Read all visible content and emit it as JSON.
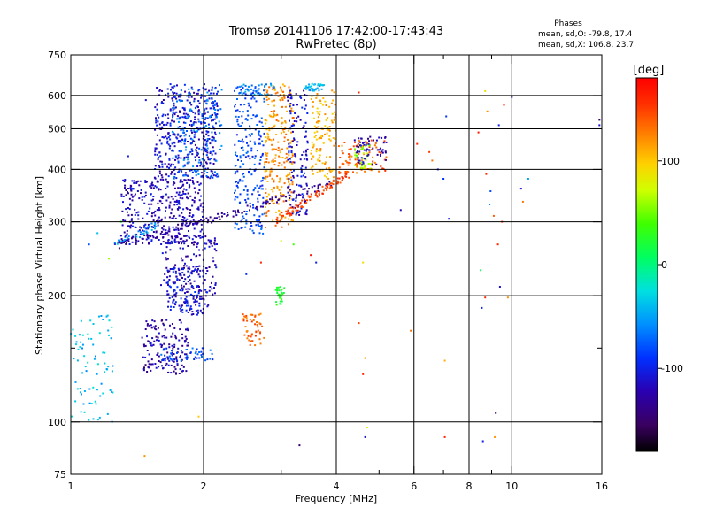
{
  "chart_data": {
    "type": "scatter",
    "title": "Tromsø 20141106 17:42:00-17:43:43",
    "subtitle": "RwPretec (8p)",
    "stats_header": "Phases",
    "stats_o": "mean, sd,O: -79.8, 17.4",
    "stats_x": "mean, sd,X: 106.8, 23.7",
    "xlabel": "Frequency [MHz]",
    "ylabel": "Stationary phase Virtual Height [km]",
    "x_scale": "log",
    "y_scale": "log",
    "xlim": [
      1,
      16
    ],
    "ylim": [
      75,
      750
    ],
    "x_ticks": [
      1,
      2,
      4,
      6,
      8,
      10,
      16
    ],
    "x_tick_labels": [
      "1",
      "2",
      "4",
      "6",
      "8",
      "10",
      "16"
    ],
    "x_minor_ticks": [
      3,
      5,
      7,
      9
    ],
    "y_ticks": [
      75,
      100,
      200,
      300,
      400,
      500,
      600,
      750
    ],
    "y_tick_labels": [
      "75",
      "100",
      "200",
      "300",
      "400",
      "500",
      "600",
      "750"
    ],
    "y_minor_ticks": [
      150
    ],
    "x_grid": [
      2,
      4,
      6,
      8,
      10
    ],
    "y_grid": [
      100,
      200,
      300,
      400,
      500,
      600
    ],
    "colorbar": {
      "label": "[deg]",
      "range": [
        -180,
        180
      ],
      "ticks": [
        -100,
        0,
        100
      ],
      "tick_labels": [
        "-100",
        "0",
        "100"
      ]
    },
    "clusters": [
      {
        "x": [
          1.55,
          2.15
        ],
        "y": [
          380,
          640
        ],
        "phase": -110,
        "n": 420
      },
      {
        "x": [
          1.3,
          2.0
        ],
        "y": [
          265,
          380
        ],
        "phase": -118,
        "n": 380
      },
      {
        "x": [
          1.6,
          2.15
        ],
        "y": [
          195,
          280
        ],
        "phase": -120,
        "n": 140
      },
      {
        "x": [
          1.65,
          2.05
        ],
        "y": [
          180,
          235
        ],
        "phase": -108,
        "n": 160
      },
      {
        "x": [
          1.45,
          1.85
        ],
        "y": [
          130,
          175
        ],
        "phase": -125,
        "n": 160
      },
      {
        "x": [
          1.6,
          2.1
        ],
        "y": [
          140,
          150
        ],
        "phase": -80,
        "n": 50
      },
      {
        "x": [
          1.7,
          2.2
        ],
        "y": [
          380,
          640
        ],
        "phase": -70,
        "n": 160
      },
      {
        "x": [
          2.35,
          2.75
        ],
        "y": [
          280,
          640
        ],
        "phase": -85,
        "n": 230
      },
      {
        "x": [
          2.75,
          3.2
        ],
        "y": [
          290,
          640
        ],
        "phase": 120,
        "n": 260
      },
      {
        "x": [
          3.1,
          3.45
        ],
        "y": [
          310,
          620
        ],
        "phase": -110,
        "n": 140
      },
      {
        "x": [
          3.5,
          4.0
        ],
        "y": [
          380,
          620
        ],
        "phase": 110,
        "n": 120
      },
      {
        "x": [
          4.05,
          5.2
        ],
        "y": [
          390,
          470
        ],
        "phase": 140,
        "n": 90
      },
      {
        "x": [
          4.4,
          4.8
        ],
        "y": [
          400,
          460
        ],
        "phase": 60,
        "n": 40
      },
      {
        "x": [
          4.4,
          5.2
        ],
        "y": [
          410,
          480
        ],
        "phase": -120,
        "n": 60
      },
      {
        "x": [
          2.45,
          2.75
        ],
        "y": [
          152,
          182
        ],
        "phase": 135,
        "n": 50
      },
      {
        "x": [
          2.9,
          3.05
        ],
        "y": [
          190,
          210
        ],
        "phase": 20,
        "n": 30
      },
      {
        "x": [
          1.0,
          1.25
        ],
        "y": [
          100,
          180
        ],
        "phase": -40,
        "n": 80
      },
      {
        "x": [
          3.4,
          3.75
        ],
        "y": [
          615,
          640
        ],
        "phase": -45,
        "n": 35
      },
      {
        "x": [
          2.4,
          2.9
        ],
        "y": [
          600,
          640
        ],
        "phase": -60,
        "n": 40
      }
    ],
    "traces": [
      {
        "x": [
          1.27,
          3.9
        ],
        "y": [
          263,
          368
        ],
        "phase": -130,
        "n": 150
      },
      {
        "x": [
          2.9,
          4.25
        ],
        "y": [
          300,
          390
        ],
        "phase": 150,
        "n": 90
      },
      {
        "x": [
          1.25,
          1.6
        ],
        "y": [
          262,
          300
        ],
        "phase": -50,
        "n": 30
      }
    ],
    "points": [
      {
        "x": 1.47,
        "y": 83,
        "phase": 120
      },
      {
        "x": 1.48,
        "y": 585,
        "phase": -110
      },
      {
        "x": 1.95,
        "y": 103,
        "phase": 100
      },
      {
        "x": 3.3,
        "y": 88,
        "phase": -150
      },
      {
        "x": 4.65,
        "y": 92,
        "phase": -110
      },
      {
        "x": 4.7,
        "y": 97,
        "phase": 80
      },
      {
        "x": 4.6,
        "y": 130,
        "phase": 160
      },
      {
        "x": 4.65,
        "y": 142,
        "phase": 120
      },
      {
        "x": 4.6,
        "y": 240,
        "phase": 90
      },
      {
        "x": 4.5,
        "y": 172,
        "phase": 150
      },
      {
        "x": 4.5,
        "y": 610,
        "phase": 160
      },
      {
        "x": 5.6,
        "y": 320,
        "phase": -120
      },
      {
        "x": 5.9,
        "y": 165,
        "phase": 130
      },
      {
        "x": 6.1,
        "y": 460,
        "phase": 160
      },
      {
        "x": 6.5,
        "y": 440,
        "phase": 150
      },
      {
        "x": 6.6,
        "y": 420,
        "phase": 130
      },
      {
        "x": 6.8,
        "y": 400,
        "phase": -100
      },
      {
        "x": 7.05,
        "y": 92,
        "phase": 160
      },
      {
        "x": 7.1,
        "y": 535,
        "phase": -90
      },
      {
        "x": 7.05,
        "y": 140,
        "phase": 110
      },
      {
        "x": 7.2,
        "y": 305,
        "phase": -100
      },
      {
        "x": 7.0,
        "y": 380,
        "phase": -90
      },
      {
        "x": 8.4,
        "y": 490,
        "phase": 170
      },
      {
        "x": 8.5,
        "y": 230,
        "phase": 10
      },
      {
        "x": 8.55,
        "y": 187,
        "phase": -100
      },
      {
        "x": 8.6,
        "y": 90,
        "phase": -100
      },
      {
        "x": 8.7,
        "y": 198,
        "phase": 160
      },
      {
        "x": 8.7,
        "y": 615,
        "phase": 90
      },
      {
        "x": 8.75,
        "y": 390,
        "phase": 160
      },
      {
        "x": 8.8,
        "y": 550,
        "phase": 120
      },
      {
        "x": 8.9,
        "y": 330,
        "phase": -60
      },
      {
        "x": 8.95,
        "y": 355,
        "phase": -80
      },
      {
        "x": 9.1,
        "y": 310,
        "phase": 140
      },
      {
        "x": 9.15,
        "y": 92,
        "phase": 120
      },
      {
        "x": 9.2,
        "y": 105,
        "phase": -150
      },
      {
        "x": 9.3,
        "y": 265,
        "phase": 160
      },
      {
        "x": 9.35,
        "y": 510,
        "phase": -100
      },
      {
        "x": 9.4,
        "y": 210,
        "phase": -110
      },
      {
        "x": 9.5,
        "y": 300,
        "phase": 150
      },
      {
        "x": 9.6,
        "y": 570,
        "phase": 160
      },
      {
        "x": 9.8,
        "y": 198,
        "phase": 120
      },
      {
        "x": 10.0,
        "y": 595,
        "phase": -130
      },
      {
        "x": 10.5,
        "y": 360,
        "phase": -110
      },
      {
        "x": 10.6,
        "y": 335,
        "phase": 130
      },
      {
        "x": 10.9,
        "y": 380,
        "phase": -50
      },
      {
        "x": 15.8,
        "y": 510,
        "phase": -110
      },
      {
        "x": 15.8,
        "y": 525,
        "phase": -150
      },
      {
        "x": 1.3,
        "y": 300,
        "phase": 20
      },
      {
        "x": 1.22,
        "y": 245,
        "phase": 60
      },
      {
        "x": 1.35,
        "y": 430,
        "phase": -100
      },
      {
        "x": 1.38,
        "y": 360,
        "phase": -90
      },
      {
        "x": 1.42,
        "y": 355,
        "phase": -110
      },
      {
        "x": 1.1,
        "y": 265,
        "phase": -80
      },
      {
        "x": 1.15,
        "y": 282,
        "phase": -40
      },
      {
        "x": 2.5,
        "y": 225,
        "phase": -90
      },
      {
        "x": 2.7,
        "y": 240,
        "phase": 160
      },
      {
        "x": 3.0,
        "y": 270,
        "phase": 80
      },
      {
        "x": 3.2,
        "y": 265,
        "phase": 40
      },
      {
        "x": 3.5,
        "y": 250,
        "phase": 170
      },
      {
        "x": 3.6,
        "y": 240,
        "phase": -100
      }
    ]
  }
}
